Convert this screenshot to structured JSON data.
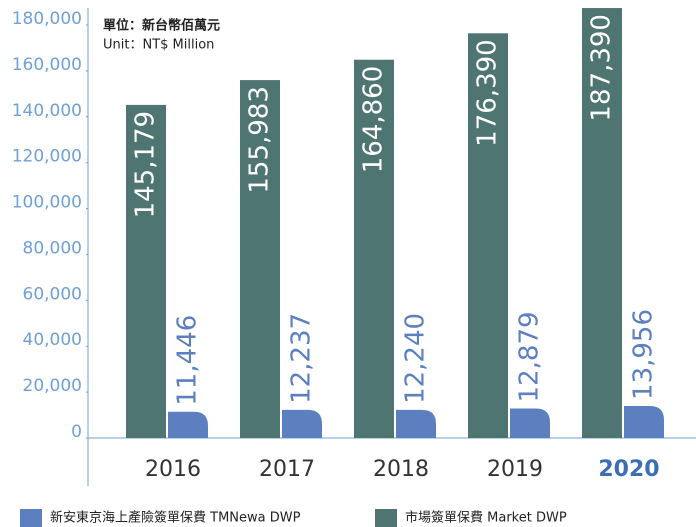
{
  "chart_data": {
    "type": "bar",
    "unit_text": [
      "單位：新台幣佰萬元",
      "Unit：NT$ Million"
    ],
    "categories": [
      "2016",
      "2017",
      "2018",
      "2019",
      "2020"
    ],
    "series": [
      {
        "name": "新安東京海上產險簽單保費 TMNewa DWP",
        "color": "#5b7fbf",
        "values": [
          11446,
          12237,
          12240,
          12879,
          13956
        ],
        "value_labels": [
          "11,446",
          "12,237",
          "12,240",
          "12,879",
          "13,956"
        ]
      },
      {
        "name": "市場簽單保費 Market DWP",
        "color": "#4f7572",
        "values": [
          145179,
          155983,
          164860,
          176390,
          187390
        ],
        "value_labels": [
          "145,179",
          "155,983",
          "164,860",
          "176,390",
          "187,390"
        ]
      }
    ],
    "ylim": [
      0,
      180000
    ],
    "yticks": [
      0,
      {
        "value": 20000,
        "label": "20,000"
      },
      {
        "value": 40000,
        "label": "40,000"
      },
      {
        "value": 60000,
        "label": "60,000"
      },
      {
        "value": 80000,
        "label": "80,000"
      },
      {
        "value": 100000,
        "label": "100,000"
      },
      {
        "value": 120000,
        "label": "120,000"
      },
      {
        "value": 140000,
        "label": "140,000"
      },
      {
        "value": 160000,
        "label": "160,000"
      },
      {
        "value": 180000,
        "label": "180,000"
      }
    ],
    "highlight": {
      "index": 4,
      "color": "#3a6fb5"
    },
    "grid": false
  }
}
